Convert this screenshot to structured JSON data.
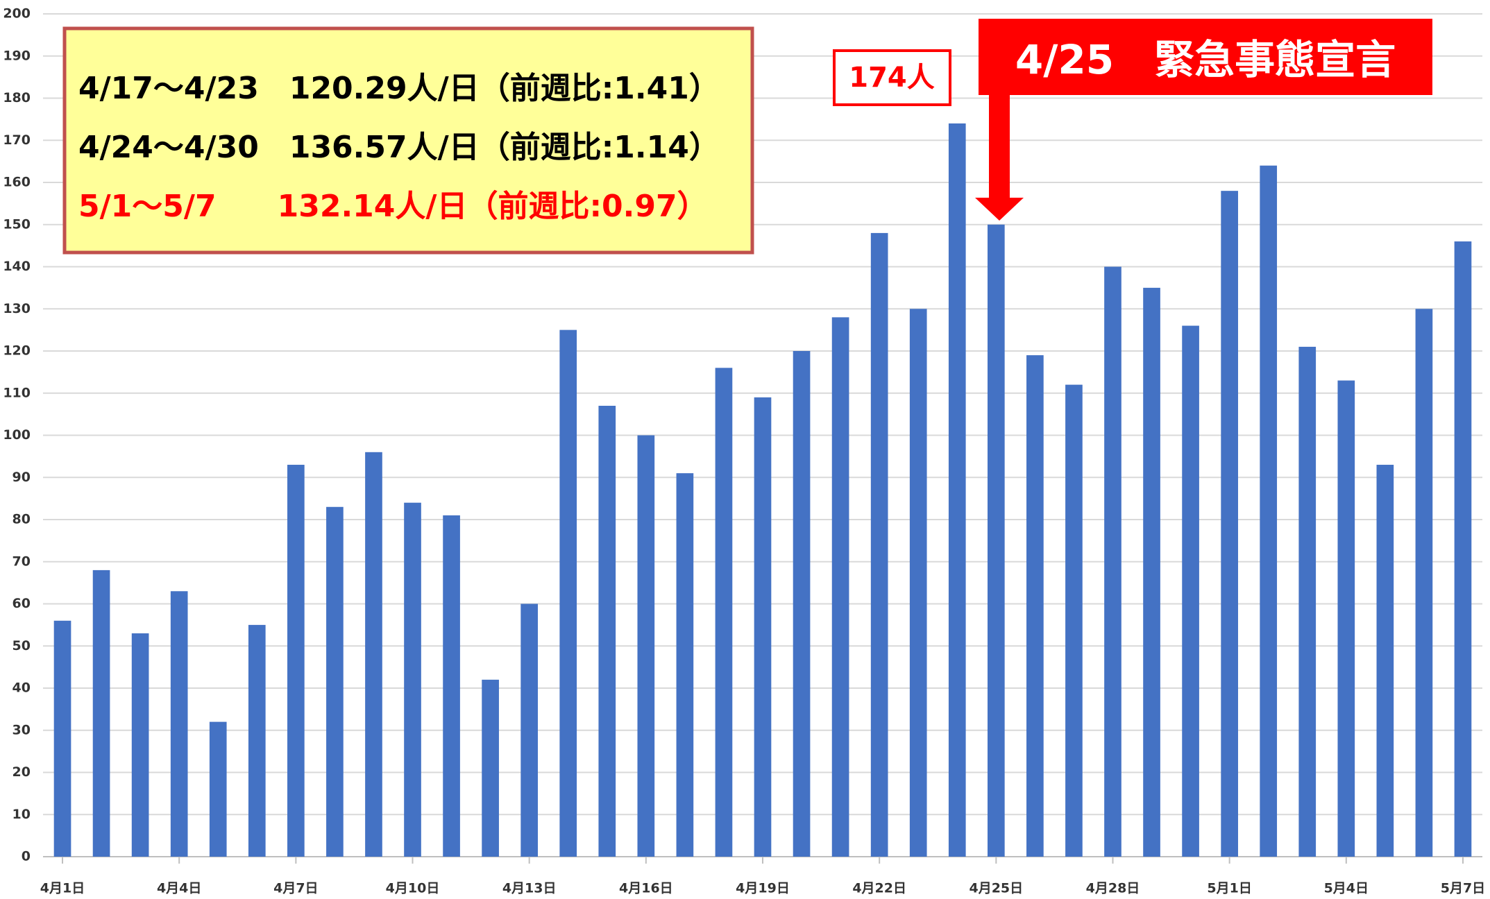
{
  "chart_data": {
    "type": "bar",
    "categories": [
      "4月1日",
      null,
      null,
      "4月4日",
      null,
      null,
      "4月7日",
      null,
      null,
      "4月10日",
      null,
      null,
      "4月13日",
      null,
      null,
      "4月16日",
      null,
      null,
      "4月19日",
      null,
      null,
      "4月22日",
      null,
      null,
      "4月25日",
      null,
      null,
      "4月28日",
      null,
      null,
      "5月1日",
      null,
      null,
      "5月4日",
      null,
      null,
      "5月7日"
    ],
    "values": [
      56,
      68,
      53,
      63,
      32,
      55,
      93,
      83,
      96,
      84,
      81,
      42,
      60,
      125,
      107,
      100,
      91,
      116,
      109,
      120,
      128,
      148,
      130,
      174,
      150,
      119,
      112,
      140,
      135,
      126,
      158,
      164,
      121,
      113,
      93,
      130,
      146
    ],
    "color": "#4472c4",
    "ylim": [
      0,
      200
    ],
    "yticks": [
      0,
      10,
      20,
      30,
      40,
      50,
      60,
      70,
      80,
      90,
      100,
      110,
      120,
      130,
      140,
      150,
      160,
      170,
      180,
      190,
      200
    ],
    "grid": true,
    "annotations": {
      "summary": [
        "4/17〜4/23　120.29人/日（前週比:1.41）",
        "4/24〜4/30　136.57人/日（前週比:1.14）",
        "5/1〜5/7　　132.14人/日（前週比:0.97）"
      ],
      "peak": "174人",
      "declaration": "4/25　緊急事態宣言"
    }
  }
}
